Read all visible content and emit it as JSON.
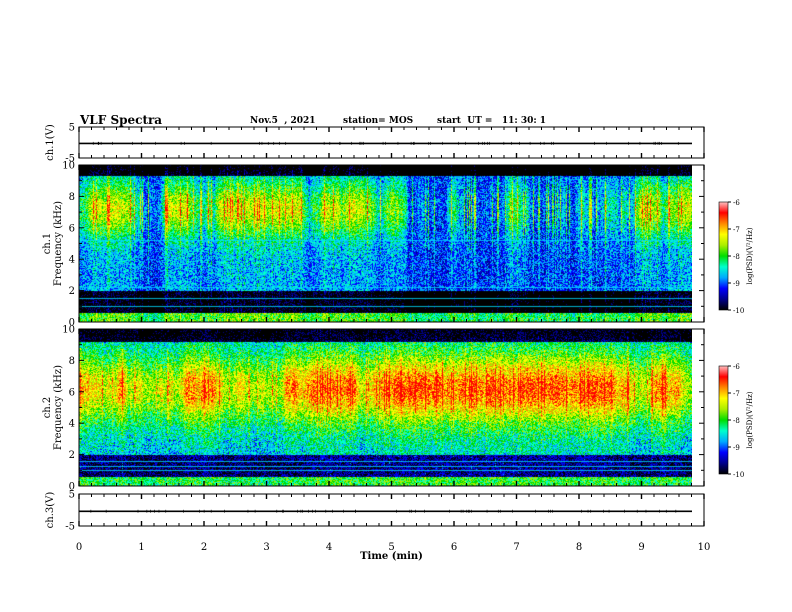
{
  "header": {
    "title": "VLF Spectra",
    "date": "Nov.5  , 2021",
    "station": "station= MOS",
    "start": "start  UT =   11: 30: 1"
  },
  "colors": {
    "colormap": [
      "#000000",
      "#00008b",
      "#0000ff",
      "#00aaff",
      "#00ffcc",
      "#00dd00",
      "#aaee00",
      "#ffff00",
      "#ff8800",
      "#ff0000",
      "#ffc0c0"
    ],
    "line": "#000000"
  },
  "chart_data": [
    {
      "type": "line",
      "name": "waveform-ch1",
      "ylabel": "ch.1(V)",
      "ylim": [
        -5,
        5
      ],
      "y_ticks": [
        "5",
        "-5"
      ],
      "x": [
        0,
        10
      ],
      "values": [
        -0.3,
        -0.3
      ]
    },
    {
      "type": "heatmap",
      "name": "spectrogram-ch1",
      "ylabel": "ch.1\nFrequency (kHz)",
      "ylim": [
        0,
        10
      ],
      "y_ticks": [
        "0",
        "2",
        "4",
        "6",
        "8",
        "10"
      ],
      "xlim": [
        0,
        10
      ],
      "colorbar": {
        "label": "log(PSD)(V²/Hz)",
        "range": [
          -10,
          -6
        ],
        "ticks": [
          "-6",
          "-7",
          "-8",
          "-9",
          "-10"
        ]
      }
    },
    {
      "type": "heatmap",
      "name": "spectrogram-ch2",
      "ylabel": "ch.2\nFrequency (kHz)",
      "ylim": [
        0,
        10
      ],
      "y_ticks": [
        "0",
        "2",
        "4",
        "6",
        "8",
        "10"
      ],
      "xlim": [
        0,
        10
      ],
      "colorbar": {
        "label": "log(PSD)(V²/Hz)",
        "range": [
          -10,
          -6
        ],
        "ticks": [
          "-6",
          "-7",
          "-8",
          "-9",
          "-10"
        ]
      }
    },
    {
      "type": "line",
      "name": "waveform-ch3",
      "ylabel": "ch.3(V)",
      "ylim": [
        -5,
        5
      ],
      "y_ticks": [
        "5",
        "-5"
      ],
      "x": [
        0,
        10
      ],
      "values": [
        -0.4,
        -0.4
      ]
    }
  ],
  "x_axis": {
    "label": "Time  (min)",
    "range": [
      0,
      10
    ],
    "ticks": [
      "0",
      "1",
      "2",
      "3",
      "4",
      "5",
      "6",
      "7",
      "8",
      "9",
      "10"
    ]
  }
}
